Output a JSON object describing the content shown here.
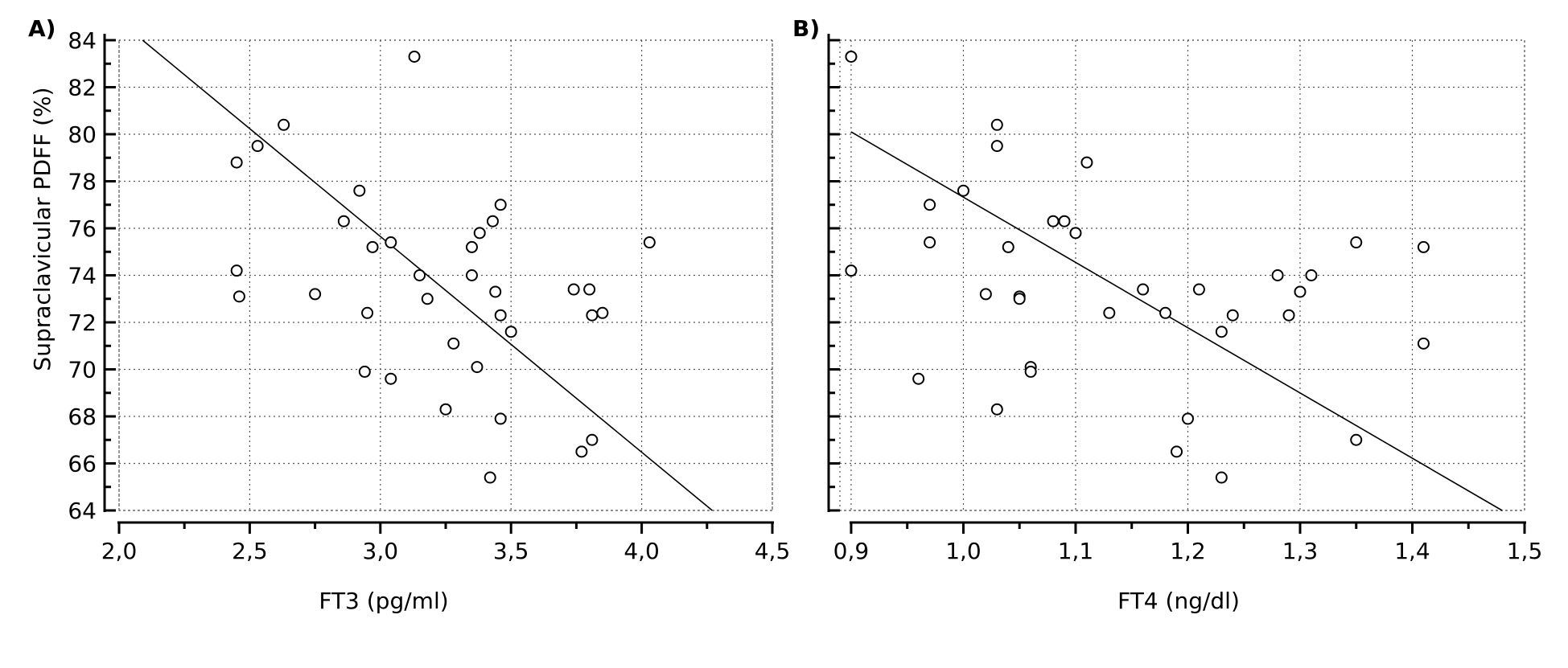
{
  "chart_data": [
    {
      "type": "scatter",
      "panel_label": "A)",
      "xlabel": "FT3 (pg/ml)",
      "ylabel": "Supraclavicular PDFF (%)",
      "xlim": [
        2.0,
        4.5
      ],
      "ylim": [
        64,
        84
      ],
      "xticks": [
        "2,0",
        "2,5",
        "3,0",
        "3,5",
        "4,0",
        "4,5"
      ],
      "yticks": [
        "64",
        "66",
        "68",
        "70",
        "72",
        "74",
        "76",
        "78",
        "80",
        "82",
        "84"
      ],
      "grid": true,
      "points": [
        [
          2.45,
          78.8
        ],
        [
          2.45,
          74.2
        ],
        [
          2.46,
          73.1
        ],
        [
          2.53,
          79.5
        ],
        [
          2.63,
          80.4
        ],
        [
          2.75,
          73.2
        ],
        [
          2.86,
          76.3
        ],
        [
          2.92,
          77.6
        ],
        [
          2.94,
          69.9
        ],
        [
          2.95,
          72.4
        ],
        [
          2.97,
          75.2
        ],
        [
          3.04,
          75.4
        ],
        [
          3.04,
          69.6
        ],
        [
          3.13,
          83.3
        ],
        [
          3.15,
          74.0
        ],
        [
          3.18,
          73.0
        ],
        [
          3.25,
          68.3
        ],
        [
          3.28,
          71.1
        ],
        [
          3.35,
          75.2
        ],
        [
          3.35,
          74.0
        ],
        [
          3.37,
          70.1
        ],
        [
          3.38,
          75.8
        ],
        [
          3.43,
          76.3
        ],
        [
          3.44,
          73.3
        ],
        [
          3.46,
          77.0
        ],
        [
          3.46,
          72.3
        ],
        [
          3.46,
          67.9
        ],
        [
          3.42,
          65.4
        ],
        [
          3.5,
          71.6
        ],
        [
          3.74,
          73.4
        ],
        [
          3.77,
          66.5
        ],
        [
          3.8,
          73.4
        ],
        [
          3.81,
          72.3
        ],
        [
          3.81,
          67.0
        ],
        [
          3.85,
          72.4
        ],
        [
          4.03,
          75.4
        ]
      ],
      "fit_line": [
        [
          2.09,
          84.0
        ],
        [
          4.27,
          64.0
        ]
      ]
    },
    {
      "type": "scatter",
      "panel_label": "B)",
      "xlabel": "FT4 (ng/dl)",
      "ylabel": "",
      "xlim": [
        0.89,
        1.5
      ],
      "ylim": [
        64,
        84
      ],
      "xticks": [
        "0,9",
        "1,0",
        "1,1",
        "1,2",
        "1,3",
        "1,4",
        "1,5"
      ],
      "xtick_values": [
        0.9,
        1.0,
        1.1,
        1.2,
        1.3,
        1.4,
        1.5
      ],
      "yticks": [
        "64",
        "66",
        "68",
        "70",
        "72",
        "74",
        "76",
        "78",
        "80",
        "82",
        "84"
      ],
      "grid": true,
      "points": [
        [
          0.9,
          83.3
        ],
        [
          0.9,
          74.2
        ],
        [
          0.96,
          69.6
        ],
        [
          0.97,
          77.0
        ],
        [
          0.97,
          75.4
        ],
        [
          1.0,
          77.6
        ],
        [
          1.02,
          73.2
        ],
        [
          1.03,
          80.4
        ],
        [
          1.03,
          79.5
        ],
        [
          1.03,
          68.3
        ],
        [
          1.04,
          75.2
        ],
        [
          1.05,
          73.1
        ],
        [
          1.05,
          73.0
        ],
        [
          1.06,
          70.1
        ],
        [
          1.06,
          69.9
        ],
        [
          1.08,
          76.3
        ],
        [
          1.09,
          76.3
        ],
        [
          1.1,
          75.8
        ],
        [
          1.11,
          78.8
        ],
        [
          1.13,
          72.4
        ],
        [
          1.16,
          73.4
        ],
        [
          1.18,
          72.4
        ],
        [
          1.19,
          66.5
        ],
        [
          1.2,
          67.9
        ],
        [
          1.21,
          73.4
        ],
        [
          1.23,
          71.6
        ],
        [
          1.23,
          65.4
        ],
        [
          1.24,
          72.3
        ],
        [
          1.28,
          74.0
        ],
        [
          1.29,
          72.3
        ],
        [
          1.3,
          73.3
        ],
        [
          1.31,
          74.0
        ],
        [
          1.35,
          75.4
        ],
        [
          1.35,
          67.0
        ],
        [
          1.41,
          75.2
        ],
        [
          1.41,
          71.1
        ]
      ],
      "fit_line": [
        [
          0.9,
          80.1
        ],
        [
          1.48,
          64.0
        ]
      ]
    }
  ]
}
